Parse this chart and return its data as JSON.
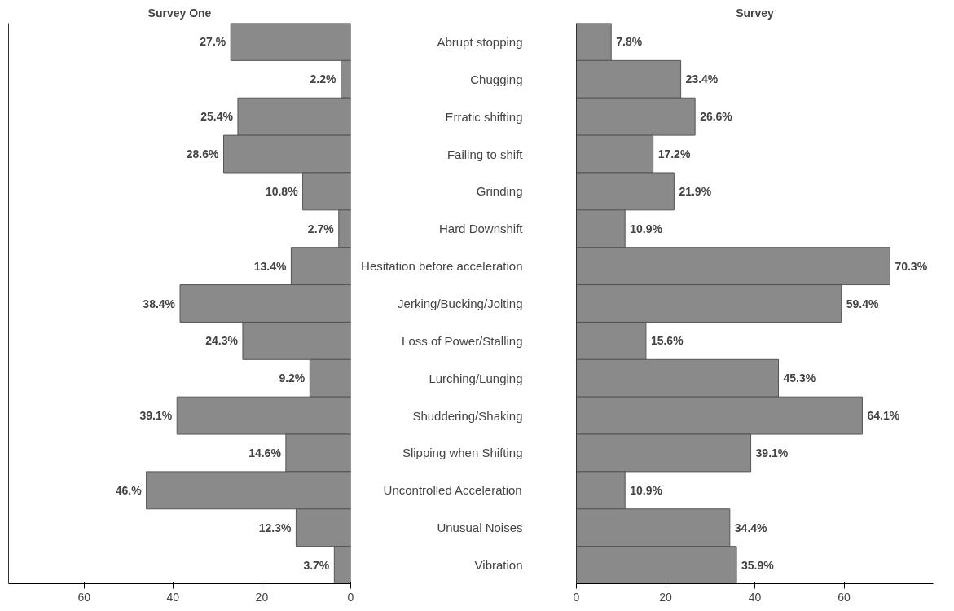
{
  "chart_data": [
    {
      "type": "bar",
      "orientation": "horizontal",
      "title": "Survey One",
      "categories": [
        null,
        null,
        null,
        null,
        null,
        null,
        null,
        null,
        null,
        null,
        null,
        null,
        null,
        null,
        null
      ],
      "values": [
        27,
        2.2,
        25.4,
        28.6,
        10.8,
        2.7,
        13.4,
        38.4,
        24.3,
        9.2,
        39.1,
        14.6,
        46,
        12.3,
        3.7
      ],
      "value_labels": [
        "27.%",
        "2.2%",
        "25.4%",
        "28.6%",
        "10.8%",
        "2.7%",
        "13.4%",
        "38.4%",
        "24.3%",
        "9.2%",
        "39.1%",
        "14.6%",
        "46.%",
        "12.3%",
        "3.7%"
      ],
      "color": "#8a8a8a",
      "xlim": [
        77,
        0
      ],
      "xticks": [
        60,
        40,
        20,
        0
      ],
      "tick_labels": "x"
    },
    {
      "type": "bar",
      "orientation": "horizontal",
      "title": "Survey",
      "categories": [
        "Abrupt stopping",
        "Chugging",
        "Erratic shifting",
        "Failing to shift",
        "Grinding",
        "Hard Downshift",
        "Hesitation before acceleration",
        "Jerking/Bucking/Jolting",
        "Loss of Power/Stalling",
        "Lurching/Lunging",
        "Shuddering/Shaking",
        "Slipping when Shifting",
        "Uncontrolled Acceleration",
        "Unusual Noises",
        "Vibration"
      ],
      "values": [
        7.8,
        23.4,
        26.6,
        17.2,
        21.9,
        10.9,
        70.3,
        59.4,
        15.6,
        45.3,
        64.1,
        39.1,
        10.9,
        34.4,
        35.9
      ],
      "value_labels": [
        "7.8%",
        "23.4%",
        "26.6%",
        "17.2%",
        "21.9%",
        "10.9%",
        "70.3%",
        "59.4%",
        "15.6%",
        "45.3%",
        "64.1%",
        "39.1%",
        "10.9%",
        "34.4%",
        "35.9%"
      ],
      "color": "#8a8a8a",
      "xlim": [
        0,
        80
      ],
      "xticks": [
        0,
        20,
        40,
        60
      ]
    }
  ]
}
